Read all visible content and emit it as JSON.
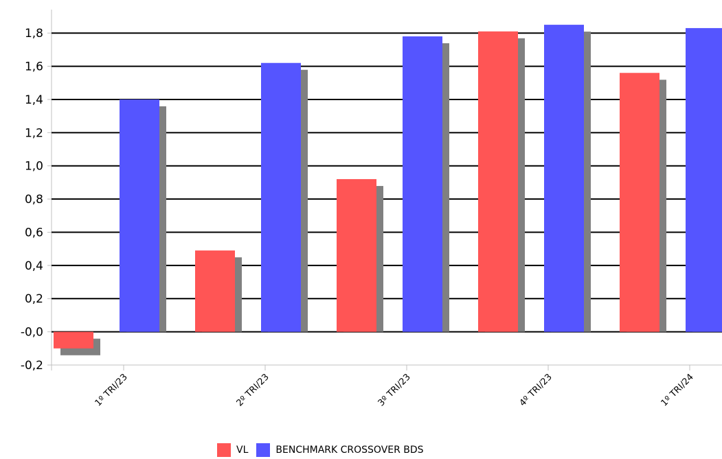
{
  "chart_data": {
    "type": "bar",
    "categories": [
      "1º TRI/23",
      "2º TRI/23",
      "3º TRI/23",
      "4º TRI/23",
      "1º TRI/24"
    ],
    "series": [
      {
        "name": "VL",
        "color": "#ff5555",
        "values": [
          -0.1,
          0.49,
          0.92,
          1.81,
          1.56
        ]
      },
      {
        "name": "BENCHMARK CROSSOVER BDS",
        "color": "#5555ff",
        "values": [
          1.4,
          1.62,
          1.78,
          1.85,
          1.83
        ]
      }
    ],
    "y_ticks": [
      "1,8",
      "1,6",
      "1,4",
      "1,2",
      "1,0",
      "0,8",
      "0,6",
      "0,4",
      "0,2",
      "-0,0",
      "-0,2"
    ],
    "ylim": [
      -0.2,
      1.9
    ],
    "grid": true,
    "legend_position": "bottom"
  }
}
